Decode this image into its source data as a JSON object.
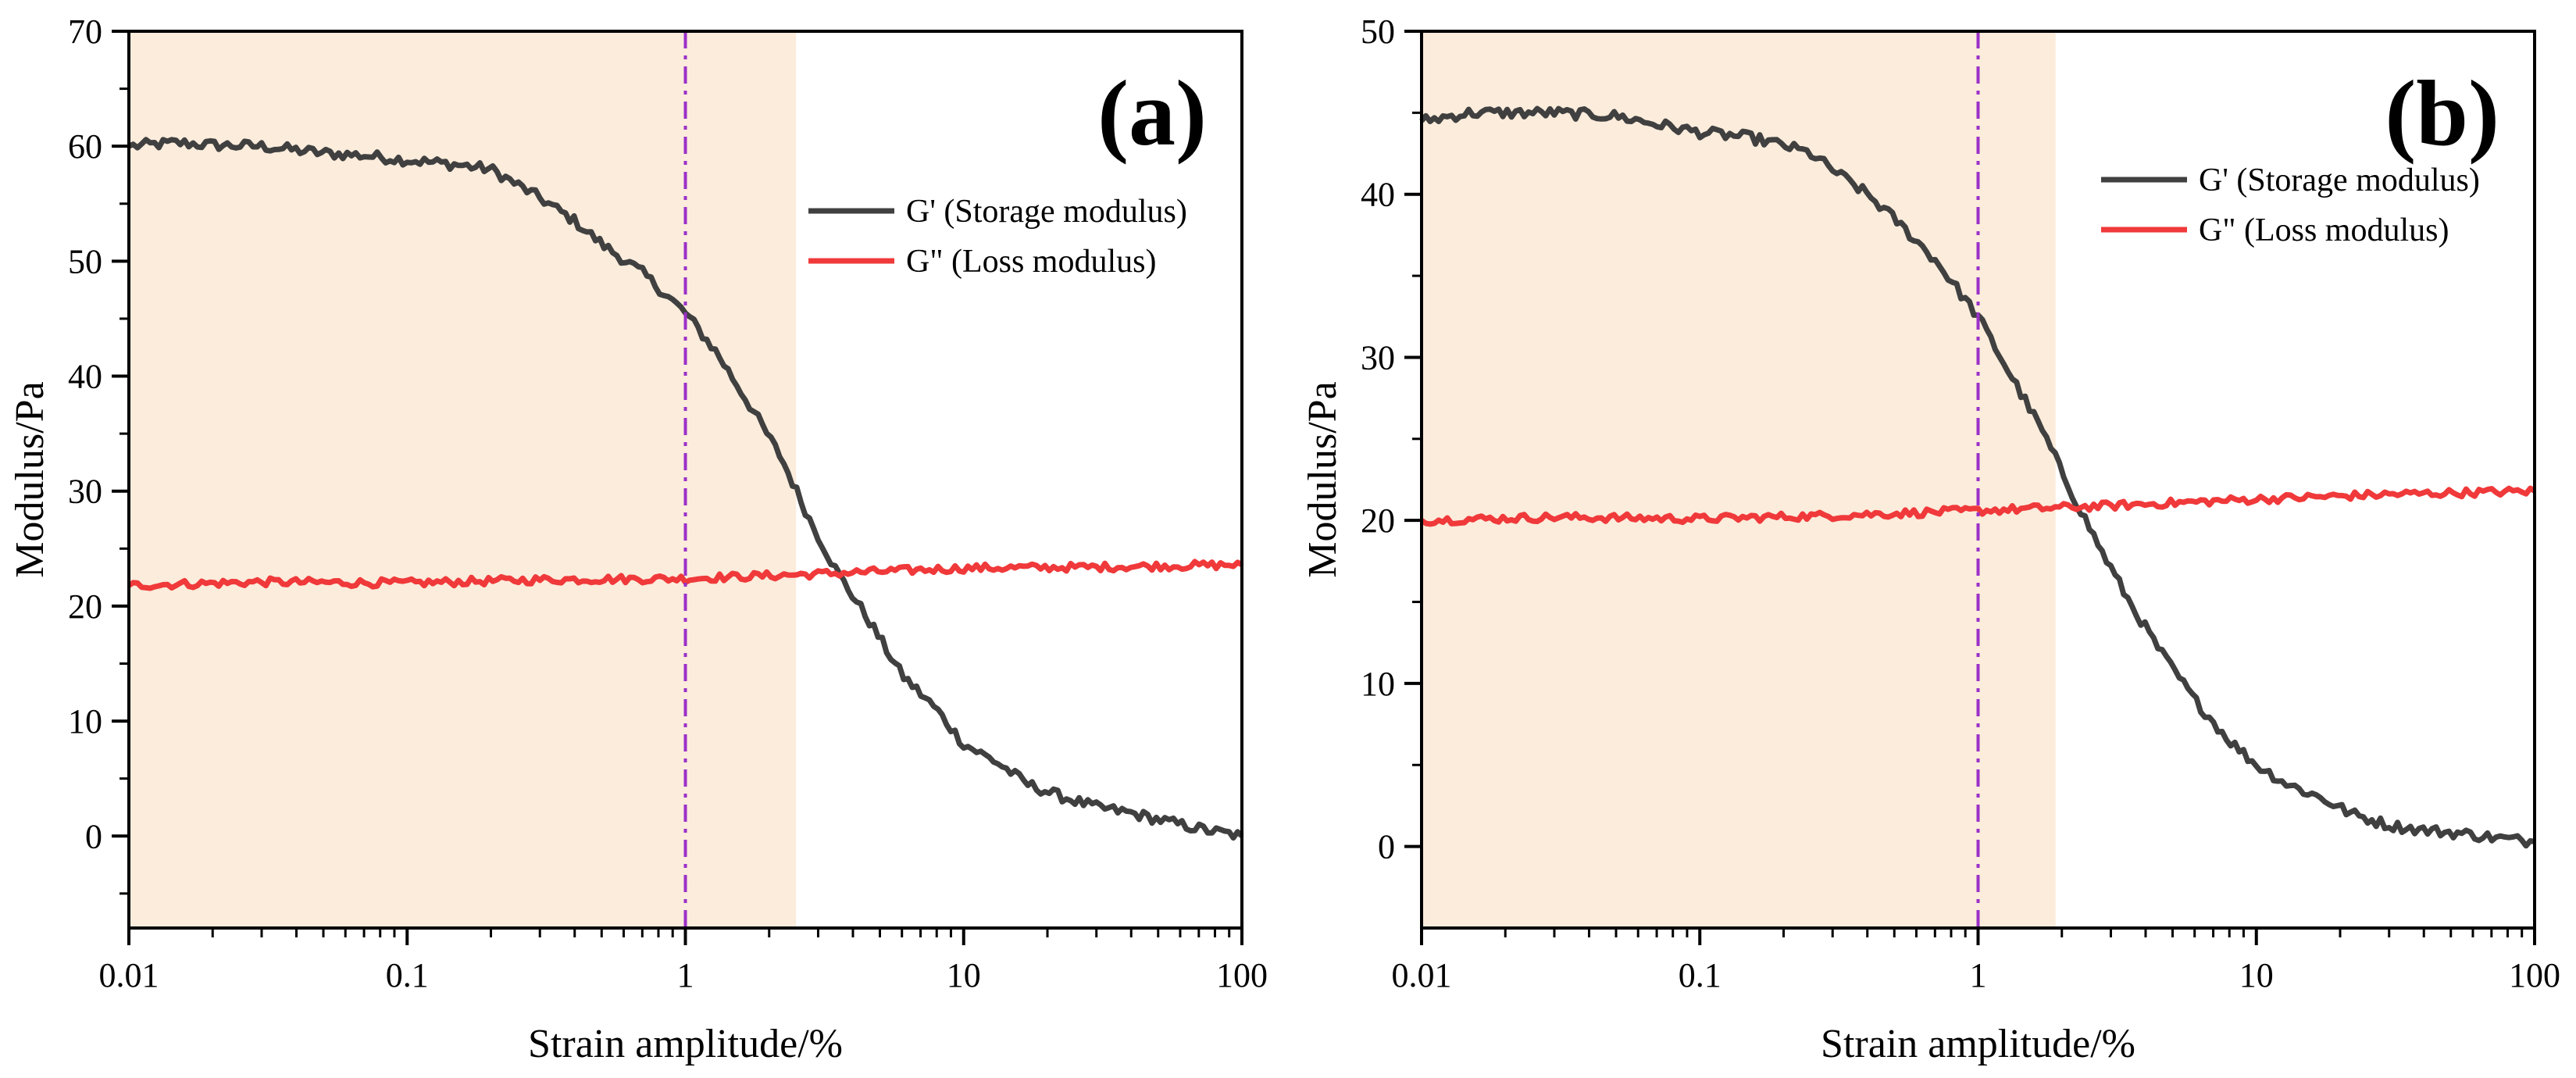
{
  "figure": {
    "panels": [
      "a",
      "b"
    ]
  },
  "chart_data": [
    {
      "type": "line",
      "panel_label": "(a)",
      "xlabel": "Strain amplitude/%",
      "ylabel": "Modulus/Pa",
      "xscale": "log",
      "xlim": [
        0.01,
        100
      ],
      "ylim": [
        -8,
        70
      ],
      "xticks": [
        0.01,
        0.1,
        1,
        10,
        100
      ],
      "xtick_labels": [
        "0.01",
        "0.1",
        "1",
        "10",
        "100"
      ],
      "yticks": [
        0,
        10,
        20,
        30,
        40,
        50,
        60,
        70
      ],
      "ytick_labels": [
        "0",
        "10",
        "20",
        "30",
        "40",
        "50",
        "60",
        "70"
      ],
      "shaded_region": {
        "x_start": 0.01,
        "x_end": 2.5,
        "color": "#fbecdc"
      },
      "reference_line": {
        "x": 1,
        "style": "dash-dot",
        "color": "#9b30c8"
      },
      "legend_position": "upper-right",
      "series": [
        {
          "name": "G' (Storage modulus)",
          "color": "#404040",
          "points": [
            [
              0.01,
              60.0
            ],
            [
              0.015,
              60.3
            ],
            [
              0.02,
              60.1
            ],
            [
              0.03,
              60.0
            ],
            [
              0.05,
              59.4
            ],
            [
              0.07,
              59.2
            ],
            [
              0.1,
              58.8
            ],
            [
              0.15,
              58.4
            ],
            [
              0.2,
              58.0
            ],
            [
              0.3,
              55.5
            ],
            [
              0.4,
              53.5
            ],
            [
              0.5,
              51.5
            ],
            [
              0.7,
              49.0
            ],
            [
              1.0,
              45.5
            ],
            [
              1.3,
              42.0
            ],
            [
              1.7,
              37.5
            ],
            [
              2.2,
              33.0
            ],
            [
              2.8,
              27.5
            ],
            [
              3.5,
              23.0
            ],
            [
              4.5,
              19.0
            ],
            [
              6.0,
              14.0
            ],
            [
              8.0,
              11.0
            ],
            [
              10.0,
              8.0
            ],
            [
              13.0,
              6.5
            ],
            [
              17.0,
              4.5
            ],
            [
              22.0,
              3.5
            ],
            [
              30.0,
              2.5
            ],
            [
              40.0,
              2.0
            ],
            [
              55.0,
              1.2
            ],
            [
              75.0,
              0.5
            ],
            [
              100.0,
              0.0
            ]
          ]
        },
        {
          "name": "G\" (Loss modulus)",
          "color": "#f0393a",
          "points": [
            [
              0.01,
              21.8
            ],
            [
              0.03,
              22.1
            ],
            [
              0.1,
              22.0
            ],
            [
              0.3,
              22.3
            ],
            [
              1.0,
              22.4
            ],
            [
              3.0,
              22.8
            ],
            [
              10.0,
              23.3
            ],
            [
              30.0,
              23.4
            ],
            [
              100.0,
              23.6
            ]
          ]
        }
      ]
    },
    {
      "type": "line",
      "panel_label": "(b)",
      "xlabel": "Strain amplitude/%",
      "ylabel": "Modulus/Pa",
      "xscale": "log",
      "xlim": [
        0.01,
        100
      ],
      "ylim": [
        -5,
        50
      ],
      "xticks": [
        0.01,
        0.1,
        1,
        10,
        100
      ],
      "xtick_labels": [
        "0.01",
        "0.1",
        "1",
        "10",
        "100"
      ],
      "yticks": [
        0,
        10,
        20,
        30,
        40,
        50
      ],
      "ytick_labels": [
        "0",
        "10",
        "20",
        "30",
        "40",
        "50"
      ],
      "shaded_region": {
        "x_start": 0.01,
        "x_end": 1.9,
        "color": "#fbecdc"
      },
      "reference_line": {
        "x": 1,
        "style": "dash-dot",
        "color": "#9b30c8"
      },
      "legend_position": "upper-right",
      "series": [
        {
          "name": "G' (Storage modulus)",
          "color": "#404040",
          "points": [
            [
              0.01,
              44.5
            ],
            [
              0.015,
              45.0
            ],
            [
              0.02,
              45.0
            ],
            [
              0.03,
              45.0
            ],
            [
              0.05,
              44.8
            ],
            [
              0.07,
              44.3
            ],
            [
              0.1,
              43.8
            ],
            [
              0.15,
              43.5
            ],
            [
              0.2,
              43.0
            ],
            [
              0.25,
              42.5
            ],
            [
              0.3,
              41.5
            ],
            [
              0.4,
              40.0
            ],
            [
              0.5,
              38.5
            ],
            [
              0.7,
              36.0
            ],
            [
              1.0,
              32.5
            ],
            [
              1.3,
              29.0
            ],
            [
              1.7,
              25.5
            ],
            [
              2.2,
              21.5
            ],
            [
              2.8,
              18.0
            ],
            [
              3.5,
              15.0
            ],
            [
              4.5,
              12.0
            ],
            [
              6.0,
              9.0
            ],
            [
              8.0,
              6.5
            ],
            [
              10.0,
              5.0
            ],
            [
              13.0,
              3.8
            ],
            [
              17.0,
              3.0
            ],
            [
              22.0,
              2.0
            ],
            [
              30.0,
              1.3
            ],
            [
              40.0,
              1.0
            ],
            [
              55.0,
              0.8
            ],
            [
              75.0,
              0.5
            ],
            [
              100.0,
              0.3
            ]
          ]
        },
        {
          "name": "G\" (Loss modulus)",
          "color": "#f0393a",
          "points": [
            [
              0.01,
              20.0
            ],
            [
              0.03,
              20.2
            ],
            [
              0.1,
              20.1
            ],
            [
              0.3,
              20.3
            ],
            [
              1.0,
              20.6
            ],
            [
              3.0,
              20.9
            ],
            [
              10.0,
              21.3
            ],
            [
              30.0,
              21.6
            ],
            [
              100.0,
              21.8
            ]
          ]
        }
      ]
    }
  ]
}
